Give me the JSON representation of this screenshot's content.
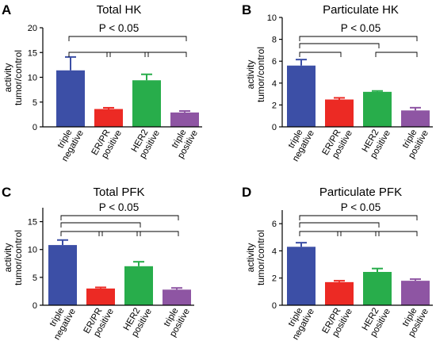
{
  "chart_data": [
    {
      "type": "bar",
      "panel_label": "A",
      "title": "Total HK",
      "ylabel": "activity\ntumor/control",
      "ylim": [
        0,
        20
      ],
      "yticks": [
        "0",
        "5",
        "10",
        "15",
        "20"
      ],
      "categories": [
        "triple\nnegative",
        "ER/PR\npositive",
        "HER2\npositive",
        "triple\npositive"
      ],
      "values": [
        11.4,
        3.6,
        9.4,
        2.9
      ],
      "errors": [
        2.7,
        0.25,
        1.2,
        0.3
      ],
      "colors": [
        "#3c4fa6",
        "#ec2a24",
        "#28ad4b",
        "#8e55a3"
      ],
      "annotation": "P < 0.05",
      "brackets": [
        [
          0,
          3
        ],
        [
          0,
          1
        ],
        [
          1,
          2
        ],
        [
          2,
          3
        ]
      ]
    },
    {
      "type": "bar",
      "panel_label": "B",
      "title": "Particulate HK",
      "ylabel": "activity\ntumor/control",
      "ylim": [
        0,
        10
      ],
      "yticks": [
        "0",
        "2",
        "4",
        "6",
        "8",
        "10"
      ],
      "categories": [
        "triple\nnegative",
        "ER/PR\npositive",
        "HER2\npositive",
        "triple\npositive"
      ],
      "values": [
        5.6,
        2.5,
        3.2,
        1.5
      ],
      "errors": [
        0.55,
        0.15,
        0.08,
        0.25
      ],
      "colors": [
        "#3c4fa6",
        "#ec2a24",
        "#28ad4b",
        "#8e55a3"
      ],
      "annotation": "P < 0.05",
      "brackets": [
        [
          0,
          3
        ],
        [
          0,
          2
        ],
        [
          0,
          1
        ],
        [
          2,
          3
        ]
      ]
    },
    {
      "type": "bar",
      "panel_label": "C",
      "title": "Total PFK",
      "ylabel": "activity\ntumor/control",
      "ylim": [
        0,
        17.5
      ],
      "yticks": [
        "0",
        "5",
        "10",
        "15"
      ],
      "tick_values": [
        0,
        5,
        10,
        15
      ],
      "categories": [
        "triple\nnegative",
        "ER/PR\npositive",
        "HER2\npositive",
        "triple\npositive"
      ],
      "values": [
        10.8,
        3.0,
        7.0,
        2.8
      ],
      "errors": [
        0.9,
        0.2,
        0.8,
        0.3
      ],
      "colors": [
        "#3c4fa6",
        "#ec2a24",
        "#28ad4b",
        "#8e55a3"
      ],
      "annotation": "P < 0.05",
      "brackets": [
        [
          0,
          3
        ],
        [
          0,
          2
        ],
        [
          0,
          1
        ],
        [
          1,
          2
        ],
        [
          2,
          3
        ]
      ]
    },
    {
      "type": "bar",
      "panel_label": "D",
      "title": "Particulate PFK",
      "ylabel": "activity\ntumor/control",
      "ylim": [
        0,
        7
      ],
      "yticks": [
        "0",
        "2",
        "4",
        "6"
      ],
      "tick_values": [
        0,
        2,
        4,
        6
      ],
      "categories": [
        "triple\nnegative",
        "ER/PR\npositive",
        "HER2\npositive",
        "triple\npositive"
      ],
      "values": [
        4.3,
        1.7,
        2.45,
        1.8
      ],
      "errors": [
        0.3,
        0.1,
        0.25,
        0.12
      ],
      "colors": [
        "#3c4fa6",
        "#ec2a24",
        "#28ad4b",
        "#8e55a3"
      ],
      "annotation": "P < 0.05",
      "brackets": [
        [
          0,
          3
        ],
        [
          0,
          2
        ],
        [
          0,
          1
        ],
        [
          1,
          2
        ],
        [
          2,
          3
        ]
      ]
    }
  ]
}
